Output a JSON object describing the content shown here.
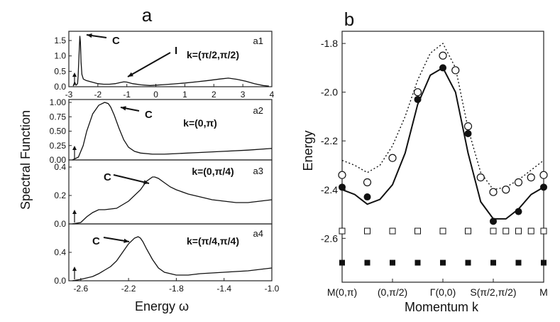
{
  "figure": {
    "left_label": "a",
    "right_label": "b",
    "left_ylabel": "Spectral Function",
    "left_xlabel": "Energy ω",
    "right_ylabel": "Energy",
    "right_xlabel": "Momentum k"
  },
  "chart_data": [
    {
      "panel": "a1",
      "type": "line",
      "k_label": "k=(π/2,π/2)",
      "xlim": [
        -3,
        4
      ],
      "ylim": [
        0,
        1.8
      ],
      "xticks": [
        -3,
        -2,
        -1,
        0,
        1,
        2,
        3,
        4
      ],
      "xtick_labels": [
        "-3",
        "-2",
        "-1",
        "0",
        "1",
        "2",
        "3",
        "4"
      ],
      "yticks": [
        0,
        0.5,
        1.0,
        1.5
      ],
      "ytick_labels": [
        "0.0",
        "0.5",
        "1.0",
        "1.5"
      ],
      "x": [
        -2.85,
        -2.8,
        -2.75,
        -2.7,
        -2.68,
        -2.65,
        -2.62,
        -2.6,
        -2.58,
        -2.55,
        -2.5,
        -2.4,
        -2.2,
        -2.0,
        -1.8,
        -1.6,
        -1.4,
        -1.2,
        -1.1,
        -1.0,
        -0.8,
        -0.5,
        -0.2,
        0.0,
        0.3,
        0.6,
        1.0,
        1.4,
        1.8,
        2.2,
        2.5,
        2.8,
        3.1,
        3.4,
        3.7,
        3.9
      ],
      "y": [
        0.02,
        0.15,
        0.05,
        0.1,
        0.35,
        1.0,
        1.65,
        1.45,
        0.8,
        0.4,
        0.25,
        0.2,
        0.15,
        0.1,
        0.08,
        0.08,
        0.1,
        0.14,
        0.16,
        0.15,
        0.1,
        0.06,
        0.04,
        0.05,
        0.07,
        0.09,
        0.12,
        0.16,
        0.2,
        0.25,
        0.28,
        0.24,
        0.18,
        0.1,
        0.04,
        0.02
      ],
      "annotations": [
        "C",
        "I"
      ],
      "arrow_label": "↑"
    },
    {
      "panel": "a2",
      "type": "line",
      "k_label": "k=(0,π)",
      "xlim": [
        -2.7,
        -1.0
      ],
      "ylim": [
        0,
        1.05
      ],
      "yticks": [
        0,
        0.25,
        0.5,
        0.75,
        1.0
      ],
      "ytick_labels": [
        "0.00",
        "0.25",
        "0.50",
        "0.75",
        "1.00"
      ],
      "x": [
        -2.67,
        -2.62,
        -2.58,
        -2.55,
        -2.5,
        -2.45,
        -2.4,
        -2.37,
        -2.35,
        -2.32,
        -2.28,
        -2.24,
        -2.2,
        -2.15,
        -2.1,
        -2.0,
        -1.9,
        -1.8,
        -1.6,
        -1.4,
        -1.2,
        -1.0
      ],
      "y": [
        0.0,
        0.05,
        0.25,
        0.5,
        0.8,
        0.95,
        1.0,
        0.98,
        0.92,
        0.78,
        0.55,
        0.35,
        0.22,
        0.15,
        0.12,
        0.1,
        0.1,
        0.11,
        0.13,
        0.15,
        0.17,
        0.2
      ],
      "annotations": [
        "C"
      ],
      "arrow_label": "↑"
    },
    {
      "panel": "a3",
      "type": "line",
      "k_label": "k=(0,π/4)",
      "xlim": [
        -2.7,
        -1.0
      ],
      "ylim": [
        0,
        0.45
      ],
      "yticks": [
        0,
        0.2,
        0.4
      ],
      "ytick_labels": [
        "0.0",
        "0.2",
        "0.4"
      ],
      "x": [
        -2.67,
        -2.6,
        -2.55,
        -2.5,
        -2.45,
        -2.4,
        -2.3,
        -2.2,
        -2.1,
        -2.05,
        -2.0,
        -1.98,
        -1.95,
        -1.9,
        -1.85,
        -1.8,
        -1.7,
        -1.6,
        -1.5,
        -1.4,
        -1.3,
        -1.2,
        -1.1,
        -1.0
      ],
      "y": [
        0.0,
        0.01,
        0.05,
        0.08,
        0.1,
        0.1,
        0.11,
        0.16,
        0.24,
        0.3,
        0.33,
        0.33,
        0.32,
        0.29,
        0.26,
        0.24,
        0.21,
        0.19,
        0.17,
        0.16,
        0.15,
        0.15,
        0.16,
        0.17
      ],
      "annotations": [
        "C"
      ],
      "arrow_label": "↑"
    },
    {
      "panel": "a4",
      "type": "line",
      "k_label": "k=(π/4,π/4)",
      "xlim": [
        -2.7,
        -1.0
      ],
      "ylim": [
        0,
        0.8
      ],
      "xticks": [
        -2.6,
        -2.2,
        -1.8,
        -1.4,
        -1.0
      ],
      "xtick_labels": [
        "-2.6",
        "-2.2",
        "-1.8",
        "-1.4",
        "-1.0"
      ],
      "yticks": [
        0,
        0.4
      ],
      "ytick_labels": [
        "0.0",
        "0.4"
      ],
      "x": [
        -2.67,
        -2.6,
        -2.5,
        -2.45,
        -2.4,
        -2.35,
        -2.3,
        -2.25,
        -2.2,
        -2.15,
        -2.12,
        -2.1,
        -2.08,
        -2.05,
        -2.0,
        -1.95,
        -1.9,
        -1.8,
        -1.7,
        -1.6,
        -1.4,
        -1.2,
        -1.0
      ],
      "y": [
        0.0,
        0.02,
        0.06,
        0.1,
        0.15,
        0.2,
        0.28,
        0.4,
        0.52,
        0.6,
        0.62,
        0.6,
        0.55,
        0.45,
        0.3,
        0.18,
        0.12,
        0.08,
        0.08,
        0.1,
        0.12,
        0.14,
        0.18
      ],
      "annotations": [
        "C"
      ],
      "arrow_label": "↑"
    },
    {
      "panel": "b",
      "type": "scatter",
      "xlabel": "Momentum k",
      "ylabel": "Energy",
      "xlim": [
        0,
        8
      ],
      "ylim": [
        -2.78,
        -1.75
      ],
      "xtick_positions": [
        0,
        2,
        4,
        6,
        8
      ],
      "xtick_labels": [
        "M(0,π)",
        "(0,π/2)",
        "Γ(0,0)",
        "S(π/2,π/2)",
        "M"
      ],
      "yticks": [
        -2.6,
        -2.4,
        -2.2,
        -2.0,
        -1.8
      ],
      "ytick_labels": [
        "-2.6",
        "-2.4",
        "-2.2",
        "-2.0",
        "-1.8"
      ],
      "series": [
        {
          "name": "solid line",
          "style": "solid",
          "x": [
            0,
            0.5,
            1,
            1.5,
            2,
            2.5,
            3,
            3.5,
            4,
            4.5,
            5,
            5.5,
            6,
            6.5,
            7,
            7.5,
            8
          ],
          "y": [
            -2.4,
            -2.42,
            -2.46,
            -2.44,
            -2.38,
            -2.25,
            -2.05,
            -1.93,
            -1.9,
            -2.0,
            -2.25,
            -2.45,
            -2.52,
            -2.52,
            -2.48,
            -2.42,
            -2.39
          ]
        },
        {
          "name": "dotted line",
          "style": "dotted",
          "x": [
            0,
            0.5,
            1,
            1.5,
            2,
            2.5,
            3,
            3.5,
            4,
            4.5,
            5,
            5.5,
            6,
            6.5,
            7,
            7.5,
            8
          ],
          "y": [
            -2.28,
            -2.3,
            -2.33,
            -2.3,
            -2.22,
            -2.1,
            -1.95,
            -1.84,
            -1.8,
            -1.9,
            -2.15,
            -2.33,
            -2.4,
            -2.39,
            -2.36,
            -2.32,
            -2.28
          ]
        },
        {
          "name": "filled circles",
          "marker": "filled-circle",
          "x": [
            0,
            1,
            3,
            4,
            5,
            6,
            7,
            8
          ],
          "y": [
            -2.39,
            -2.43,
            -2.03,
            -1.9,
            -2.17,
            -2.53,
            -2.49,
            -2.39
          ]
        },
        {
          "name": "open circles",
          "marker": "open-circle",
          "x": [
            0,
            1,
            2,
            3,
            4,
            4.5,
            5,
            5.5,
            6,
            6.5,
            7,
            7.5,
            8
          ],
          "y": [
            -2.34,
            -2.37,
            -2.27,
            -2.0,
            -1.85,
            -1.91,
            -2.14,
            -2.35,
            -2.41,
            -2.4,
            -2.37,
            -2.35,
            -2.34
          ]
        },
        {
          "name": "open squares",
          "marker": "open-square",
          "x": [
            0,
            1,
            2,
            3,
            4,
            5,
            6,
            6.5,
            7,
            7.5,
            8
          ],
          "y": [
            -2.57,
            -2.57,
            -2.57,
            -2.57,
            -2.57,
            -2.57,
            -2.57,
            -2.57,
            -2.57,
            -2.57,
            -2.57
          ]
        },
        {
          "name": "filled squares",
          "marker": "filled-square",
          "x": [
            0,
            1,
            2,
            3,
            4,
            5,
            6,
            7,
            8
          ],
          "y": [
            -2.7,
            -2.7,
            -2.7,
            -2.7,
            -2.7,
            -2.7,
            -2.7,
            -2.7,
            -2.7
          ]
        }
      ]
    }
  ]
}
